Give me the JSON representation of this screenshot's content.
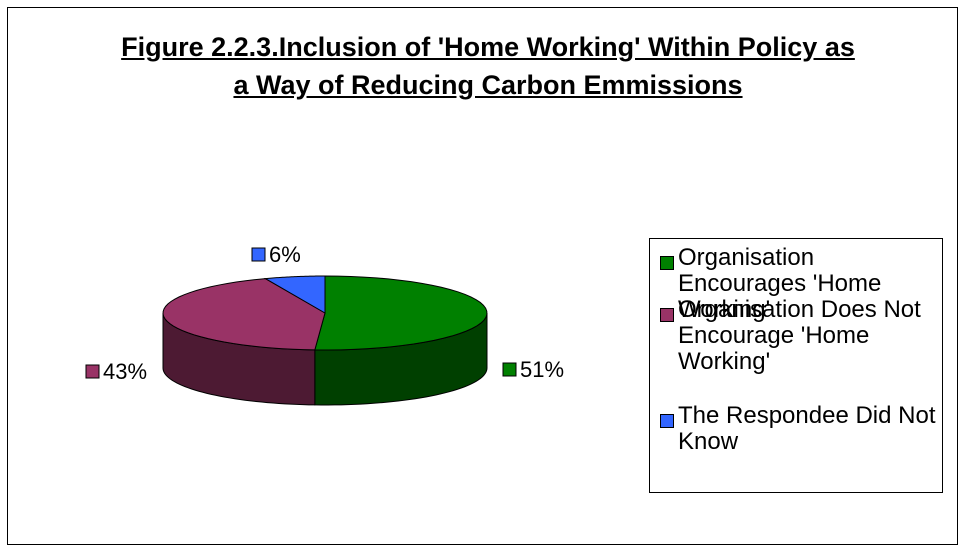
{
  "chart_data": {
    "type": "pie",
    "title": "Figure 2.2.3.Inclusion of 'Home Working' Within Policy as a Way of Reducing Carbon Emmissions",
    "categories": [
      "Organisation Encourages 'Home Working'",
      "Organisation Does Not Encourage 'Home Working'",
      "The Respondee Did Not Know"
    ],
    "values": [
      51,
      43,
      6
    ],
    "value_labels": [
      "51%",
      "43%",
      "6%"
    ],
    "colors": [
      "#008000",
      "#993366",
      "#3366ff"
    ],
    "legend": "right"
  }
}
